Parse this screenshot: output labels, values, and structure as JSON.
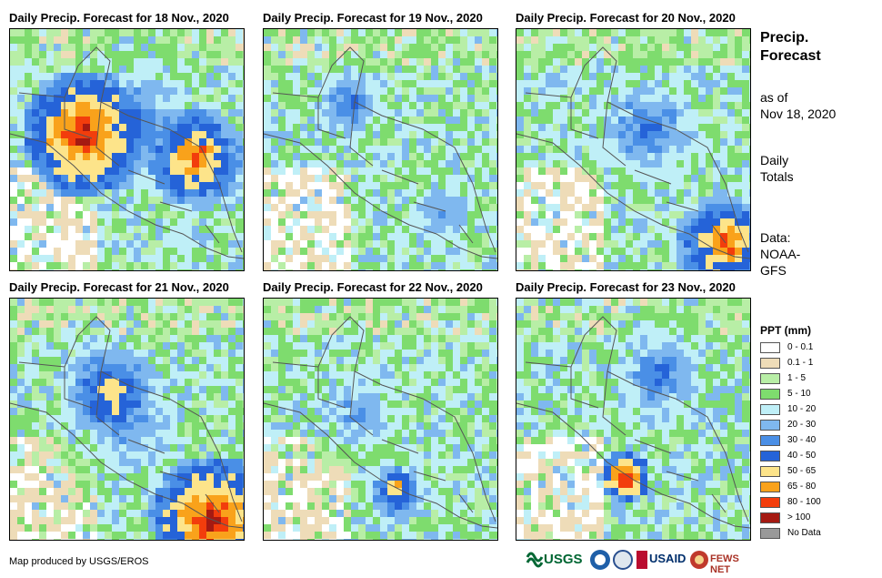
{
  "panels": [
    {
      "title": "Daily Precip. Forecast for 18 Nov., 2020"
    },
    {
      "title": "Daily Precip. Forecast for 19 Nov., 2020"
    },
    {
      "title": "Daily Precip. Forecast for 20 Nov., 2020"
    },
    {
      "title": "Daily Precip. Forecast for 21 Nov., 2020"
    },
    {
      "title": "Daily Precip. Forecast for 22 Nov., 2020"
    },
    {
      "title": "Daily Precip. Forecast for 23 Nov., 2020"
    }
  ],
  "sidebar": {
    "title_line1": "Precip.",
    "title_line2": "Forecast",
    "asof_line1": "as of",
    "asof_line2": "Nov 18, 2020",
    "totals_line1": "Daily",
    "totals_line2": "Totals",
    "data_line1": "Data:",
    "data_line2": "NOAA-",
    "data_line3": "GFS"
  },
  "legend": {
    "title": "PPT (mm)",
    "items": [
      {
        "label": "0 - 0.1",
        "color": "#ffffff"
      },
      {
        "label": "0.1 - 1",
        "color": "#eedcb8"
      },
      {
        "label": "1 - 5",
        "color": "#b8eea6"
      },
      {
        "label": "5 - 10",
        "color": "#7edc6e"
      },
      {
        "label": "10 - 20",
        "color": "#bfeff7"
      },
      {
        "label": "20 - 30",
        "color": "#7fb8ef"
      },
      {
        "label": "30 - 40",
        "color": "#4a8fe6"
      },
      {
        "label": "40 - 50",
        "color": "#2563d8"
      },
      {
        "label": "50 - 65",
        "color": "#fde48a"
      },
      {
        "label": "65 - 80",
        "color": "#f9a21b"
      },
      {
        "label": "80 - 100",
        "color": "#f23d0c"
      },
      {
        "label": "> 100",
        "color": "#a51a12"
      },
      {
        "label": "No Data",
        "color": "#999999"
      }
    ]
  },
  "credit": "Map produced by USGS/EROS",
  "logos": {
    "usgs": "USGS",
    "usaid": "USAID",
    "fewsnet": "FEWS NET"
  }
}
